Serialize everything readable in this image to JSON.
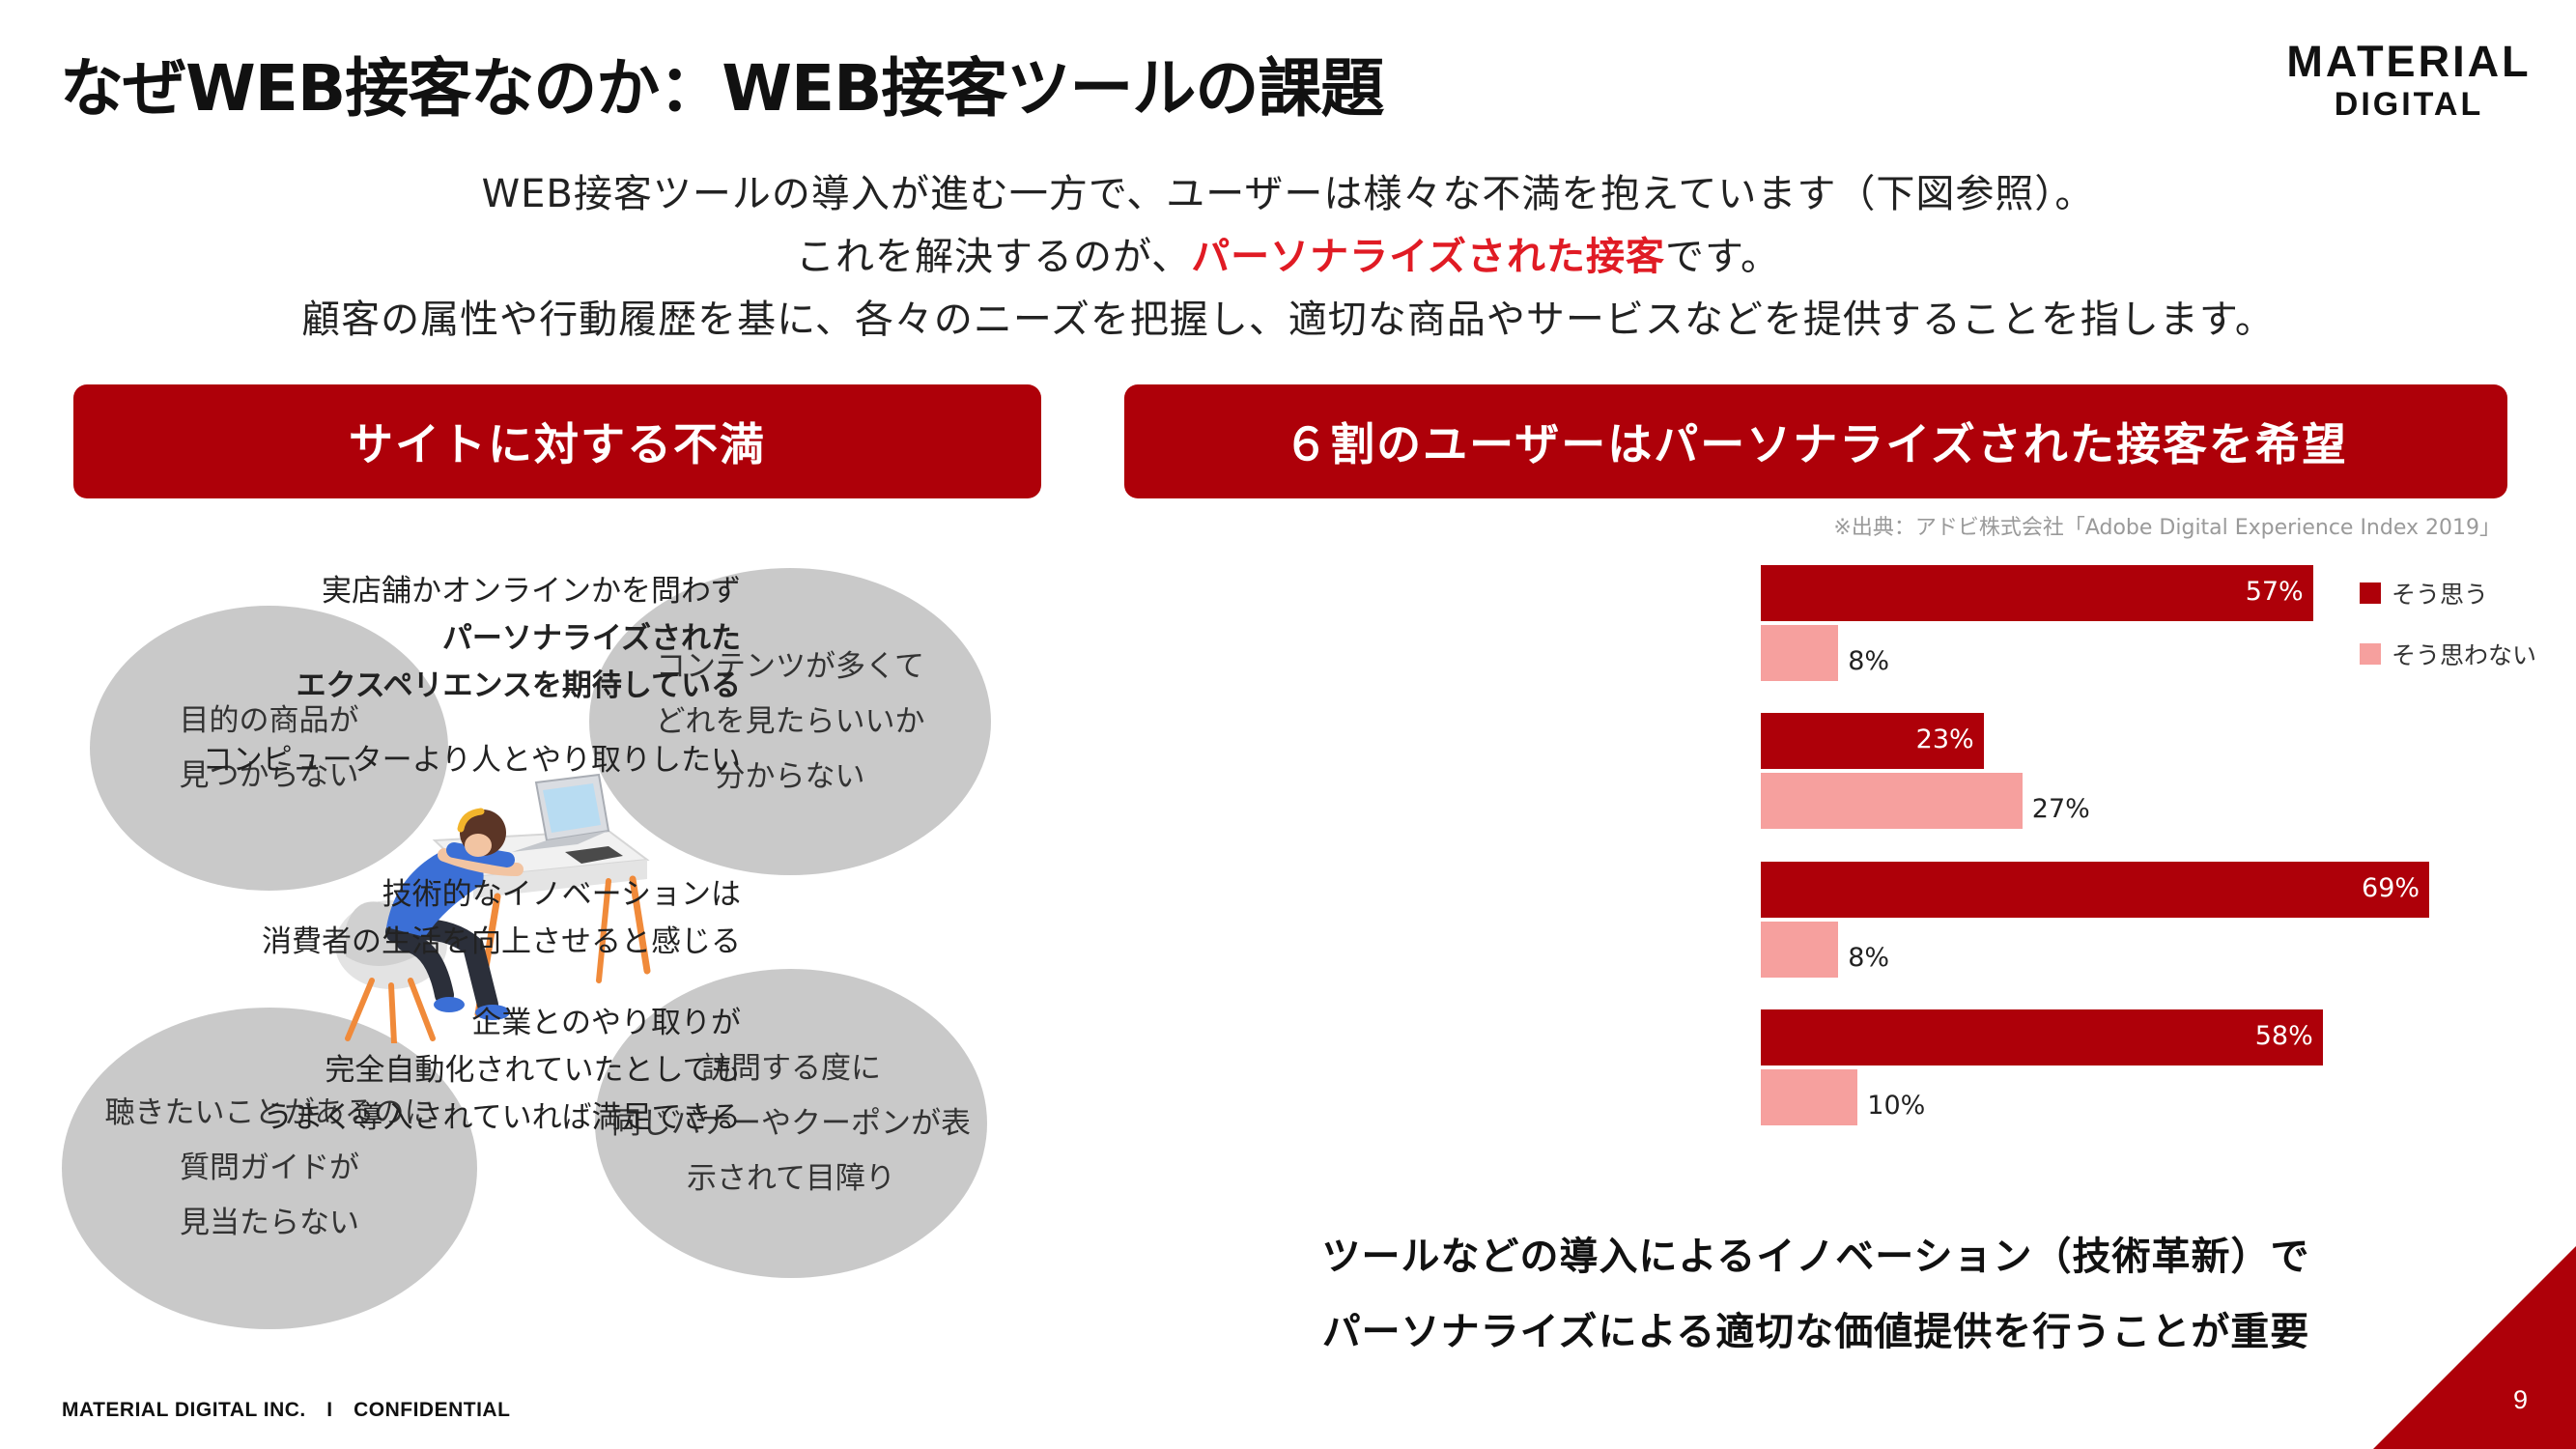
{
  "header": {
    "title": "なぜWEB接客なのか：WEB接客ツールの課題",
    "logo_line1": "MATERIAL",
    "logo_line2": "DIGITAL"
  },
  "intro": {
    "line1": "WEB接客ツールの導入が進む一方で、ユーザーは様々な不満を抱えています（下図参照）。",
    "line2_before": "これを解決するのが、",
    "line2_accent": "パーソナライズされた接客",
    "line2_after": "です。",
    "line3": "顧客の属性や行動履歴を基に、各々のニーズを把握し、適切な商品やサービスなどを提供することを指します。"
  },
  "left_panel": {
    "banner": "サイトに対する不満",
    "bubbles": [
      [
        "目的の商品が",
        "見つからない"
      ],
      [
        "コンテンツが多くて",
        "どれを見たらいいか",
        "分からない"
      ],
      [
        "聴きたいことがあるのに",
        "質問ガイドが",
        "見当たらない"
      ],
      [
        "訪問する度に",
        "同じバナーやクーポンが表",
        "示されて目障り"
      ]
    ]
  },
  "right_panel": {
    "banner": "６割のユーザーはパーソナライズされた接客を希望",
    "source": "※出典：アドビ株式会社「Adobe Digital Experience Index 2019」"
  },
  "chart_data": {
    "type": "bar",
    "orientation": "horizontal",
    "categories": [
      "実店舗かオンラインかを問わずパーソナライズされたエクスペリエンスを期待している",
      "コンピューターより人とやり取りしたい",
      "技術的なイノベーションは消費者の生活を向上させると感じる",
      "企業とのやり取りが完全自動化されていたとしてもうまく導入されていれば満足できる"
    ],
    "category_lines": [
      [
        "実店舗かオンラインかを問わず",
        "パーソナライズされた",
        "エクスペリエンスを期待している"
      ],
      [
        "コンピューターより人とやり取りしたい"
      ],
      [
        "技術的なイノベーションは",
        "消費者の生活を向上させると感じる"
      ],
      [
        "企業とのやり取りが",
        "完全自動化されていたとしても",
        "うまく導入されていれば満足できる"
      ]
    ],
    "series": [
      {
        "name": "そう思う",
        "values": [
          57,
          23,
          69,
          58
        ],
        "labels": [
          "57%",
          "23%",
          "69%",
          "58%"
        ],
        "color": "#ae0009"
      },
      {
        "name": "そう思わない",
        "values": [
          8,
          27,
          8,
          10
        ],
        "labels": [
          "8%",
          "27%",
          "8%",
          "10%"
        ],
        "color": "#f6a09e"
      }
    ],
    "unit": "%",
    "xlim": [
      0,
      100
    ],
    "legend_position": "top-right",
    "grid": false
  },
  "conclusion": {
    "line1": "ツールなどの導入によるイノベーション（技術革新）で",
    "line2": "パーソナライズによる適切な価値提供を行うことが重要"
  },
  "footer": {
    "company": "MATERIAL DIGITAL INC.　I　CONFIDENTIAL",
    "page_number": "9"
  },
  "colors": {
    "brand_red": "#ae0009",
    "accent_red": "#e01b24",
    "light_pink": "#f6a09e",
    "bubble_gray": "#c9c9c9"
  }
}
